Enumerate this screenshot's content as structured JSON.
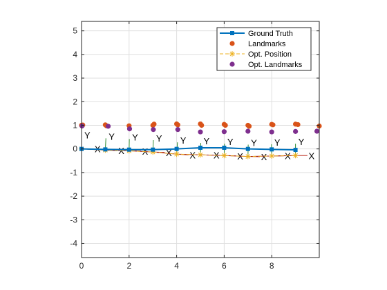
{
  "chart_data": {
    "type": "line",
    "xlim": [
      0,
      10
    ],
    "ylim": [
      -4.6,
      5.4
    ],
    "xticks": [
      0,
      2,
      4,
      6,
      8
    ],
    "yticks": [
      -4,
      -3,
      -2,
      -1,
      0,
      1,
      2,
      3,
      4,
      5
    ],
    "grid": true,
    "legend_position": "top-right",
    "frame_axis_labels": {
      "x": "X",
      "y": "Y"
    },
    "series": [
      {
        "name": "Ground Truth",
        "style": "line-marker",
        "color": "#0072BD",
        "x": [
          0,
          1,
          2,
          3,
          4,
          5,
          6,
          7,
          8,
          9
        ],
        "y": [
          0,
          -0.02,
          -0.03,
          -0.03,
          0.0,
          0.05,
          0.05,
          0.0,
          -0.02,
          -0.04
        ]
      },
      {
        "name": "Landmarks",
        "style": "scatter",
        "color": "#D95319",
        "x": [
          0,
          1,
          2,
          3,
          4,
          5,
          6,
          7,
          8,
          9,
          10,
          0.05,
          1.05,
          3.05,
          4.05,
          5.05,
          6.05,
          7.05,
          8.05,
          9.1
        ],
        "y": [
          1.0,
          1.02,
          0.98,
          1.0,
          1.06,
          1.06,
          1.04,
          1.0,
          1.04,
          1.05,
          0.97,
          1.01,
          0.98,
          1.05,
          1.02,
          1.0,
          1.0,
          0.96,
          1.02,
          1.03
        ]
      },
      {
        "name": "Opt. Position",
        "style": "dashed-marker",
        "color": "#EDB120",
        "x": [
          0,
          1,
          2,
          3,
          4,
          5,
          6,
          7,
          8,
          9
        ],
        "y": [
          0,
          -0.05,
          -0.08,
          -0.13,
          -0.22,
          -0.25,
          -0.28,
          -0.32,
          -0.3,
          -0.28
        ]
      },
      {
        "name": "Opt. Landmarks",
        "style": "scatter",
        "color": "#7E2F8E",
        "x": [
          0.02,
          1.12,
          2.02,
          3.02,
          4.05,
          5.0,
          6.0,
          7.0,
          8.0,
          9.0,
          9.9
        ],
        "y": [
          0.97,
          0.96,
          0.85,
          0.82,
          0.82,
          0.72,
          0.73,
          0.75,
          0.72,
          0.74,
          0.75
        ]
      }
    ],
    "pose_frames": {
      "x": [
        0,
        1,
        2,
        3,
        4,
        5,
        6,
        7,
        8,
        9
      ],
      "y": [
        0,
        -0.05,
        -0.08,
        -0.13,
        -0.22,
        -0.25,
        -0.28,
        -0.32,
        -0.3,
        -0.28
      ],
      "theta": [
        0,
        -0.05,
        -0.02,
        -0.04,
        -0.07,
        -0.03,
        -0.03,
        -0.02,
        0.02,
        0.0
      ]
    },
    "tag_outline_color": "#A21414",
    "frame_x_color": "#C0392B",
    "frame_y_color": "#2E8B2E"
  }
}
